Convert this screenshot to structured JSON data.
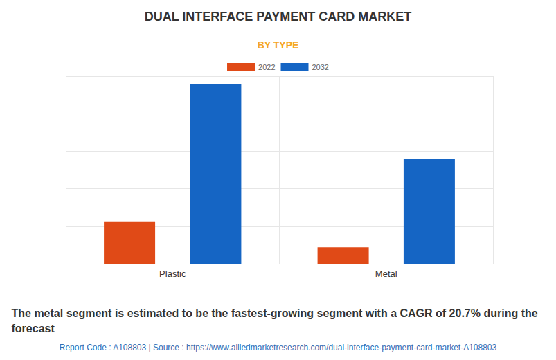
{
  "chart_data": {
    "type": "bar",
    "title": "DUAL INTERFACE PAYMENT CARD MARKET",
    "subtitle": "BY TYPE",
    "caption": "The metal segment is estimated to be the fastest-growing segment with a CAGR of 20.7% during the forecast",
    "source": "Report Code : A108803 | Source : https://www.alliedmarketresearch.com/dual-interface-payment-card-market-A108803",
    "categories": [
      "Plastic",
      "Metal"
    ],
    "series": [
      {
        "name": "2022",
        "color": "#e04a17",
        "values": [
          1.13,
          0.44
        ]
      },
      {
        "name": "2032",
        "color": "#1565c4",
        "values": [
          4.78,
          2.8
        ]
      }
    ],
    "ylim": [
      0,
      5
    ],
    "yticks": [
      0,
      1,
      2,
      3,
      4,
      5
    ],
    "grid": true,
    "legend": "top",
    "tick_labels": "x"
  }
}
